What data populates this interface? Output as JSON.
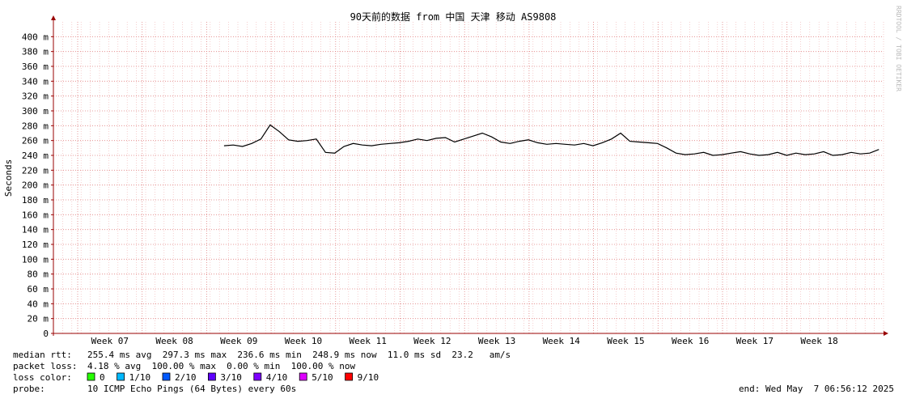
{
  "chart_data": {
    "type": "line",
    "title": "90天前的数据 from 中国 天津 移动 AS9808",
    "y_label": "Seconds",
    "side_note": "RRDTOOL / TOBI OETIKER",
    "ylim": [
      0,
      420
    ],
    "yticks": [
      0,
      {
        "value": 20,
        "label": "20 m"
      },
      {
        "value": 40,
        "label": "40 m"
      },
      {
        "value": 60,
        "label": "60 m"
      },
      {
        "value": 80,
        "label": "80 m"
      },
      {
        "value": 100,
        "label": "100 m"
      },
      {
        "value": 120,
        "label": "120 m"
      },
      {
        "value": 140,
        "label": "140 m"
      },
      {
        "value": 160,
        "label": "160 m"
      },
      {
        "value": 180,
        "label": "180 m"
      },
      {
        "value": 200,
        "label": "200 m"
      },
      {
        "value": 220,
        "label": "220 m"
      },
      {
        "value": 240,
        "label": "240 m"
      },
      {
        "value": 260,
        "label": "260 m"
      },
      {
        "value": 280,
        "label": "280 m"
      },
      {
        "value": 300,
        "label": "300 m"
      },
      {
        "value": 320,
        "label": "320 m"
      },
      {
        "value": 340,
        "label": "340 m"
      },
      {
        "value": 360,
        "label": "360 m"
      },
      {
        "value": 380,
        "label": "380 m"
      },
      {
        "value": 400,
        "label": "400 m"
      }
    ],
    "weeks": [
      "Week 07",
      "Week 08",
      "Week 09",
      "Week 10",
      "Week 11",
      "Week 12",
      "Week 13",
      "Week 14",
      "Week 15",
      "Week 16",
      "Week 17",
      "Week 18"
    ],
    "grid": true,
    "series": [
      {
        "name": "median rtt",
        "color": "#000000",
        "values": [
          null,
          null,
          null,
          null,
          null,
          null,
          null,
          null,
          null,
          null,
          null,
          null,
          null,
          null,
          null,
          null,
          null,
          null,
          253,
          254,
          252,
          256,
          262,
          281,
          272,
          261,
          259,
          260,
          262,
          244,
          243,
          252,
          256,
          254,
          253,
          255,
          256,
          257,
          259,
          262,
          260,
          263,
          264,
          258,
          262,
          266,
          270,
          265,
          258,
          256,
          259,
          261,
          257,
          255,
          256,
          255,
          254,
          256,
          253,
          257,
          262,
          270,
          259,
          258,
          257,
          256,
          250,
          243,
          241,
          242,
          244,
          240,
          241,
          243,
          245,
          242,
          240,
          241,
          244,
          240,
          243,
          241,
          242,
          245,
          240,
          241,
          244,
          242,
          243,
          248
        ]
      }
    ],
    "stats": [
      {
        "label": "median rtt:",
        "text": "255.4 ms avg  297.3 ms max  236.6 ms min  248.9 ms now  11.0 ms sd  23.2   am/s"
      },
      {
        "label": "packet loss:",
        "text": "4.18 % avg  100.00 % max  0.00 % min  100.00 % now"
      }
    ],
    "loss_legend": {
      "label": "loss color:",
      "items": [
        {
          "name": "0",
          "color": "#26ff00"
        },
        {
          "name": "1/10",
          "color": "#00b8ff"
        },
        {
          "name": "2/10",
          "color": "#0059ff"
        },
        {
          "name": "3/10",
          "color": "#5e00ff"
        },
        {
          "name": "4/10",
          "color": "#7e00ff"
        },
        {
          "name": "5/10",
          "color": "#dd00ff"
        },
        {
          "name": "9/10",
          "color": "#ff0000"
        }
      ]
    },
    "probe": {
      "label": "probe:",
      "text": "10 ICMP Echo Pings (64 Bytes) every 60s"
    },
    "end": "end: Wed May  7 06:56:12 2025"
  }
}
